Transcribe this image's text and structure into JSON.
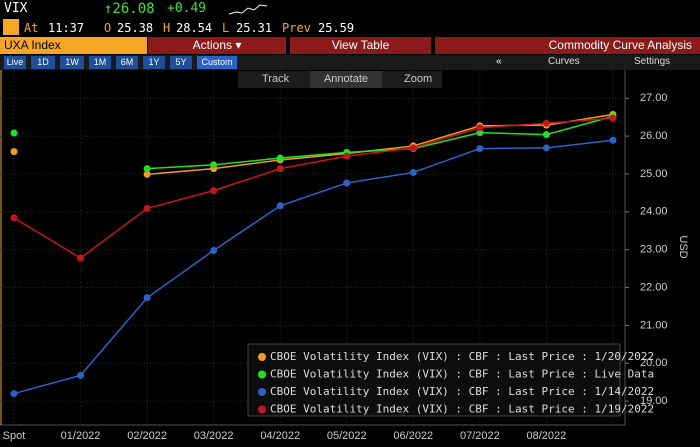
{
  "header": {
    "ticker": "VIX",
    "last": "↑26.08",
    "change": "+0.49",
    "time_label": "At",
    "time": "11:37",
    "open_label": "O",
    "open": "25.38",
    "high_label": "H",
    "high": "28.54",
    "low_label": "L",
    "low": "25.31",
    "prev_label": "Prev",
    "prev": "25.59"
  },
  "toolbar": {
    "security": "UXA Index",
    "actions": "Actions ▾",
    "view_table": "View Table",
    "function_title": "Commodity Curve Analysis",
    "periods": [
      "Live",
      "1D",
      "1W",
      "1M",
      "6M",
      "1Y",
      "5Y",
      "Custom"
    ],
    "collapse": "«",
    "curves": "Curves",
    "settings": "Settings",
    "track": "Track",
    "annotate": "Annotate",
    "zoom": "Zoom"
  },
  "chart_data": {
    "type": "line",
    "y_label": "USD",
    "categories": [
      "Spot",
      "01/2022",
      "02/2022",
      "03/2022",
      "04/2022",
      "05/2022",
      "06/2022",
      "07/2022",
      "08/2022",
      null
    ],
    "series": [
      {
        "name": "CBOE Volatility Index (VIX) : CBF : Last Price : 1/20/2022",
        "color": "#f39c1f",
        "values": [
          25.59,
          null,
          24.99,
          25.14,
          25.37,
          25.54,
          25.74,
          26.27,
          26.29,
          26.57
        ]
      },
      {
        "name": "CBOE Volatility Index (VIX) : CBF : Last Price : Live Data",
        "color": "#22e022",
        "values": [
          26.08,
          null,
          25.14,
          25.24,
          25.42,
          25.57,
          25.67,
          26.09,
          26.04,
          26.52
        ]
      },
      {
        "name": "CBOE Volatility Index (VIX) : CBF : Last Price : 1/14/2022",
        "color": "#2a64c8",
        "values": [
          19.2,
          19.68,
          21.73,
          22.98,
          24.16,
          24.76,
          25.04,
          25.67,
          25.69,
          25.89
        ]
      },
      {
        "name": "CBOE Volatility Index (VIX) : CBF : Last Price : 1/19/2022",
        "color": "#c8141e",
        "values": [
          23.84,
          22.78,
          24.09,
          24.56,
          25.14,
          25.47,
          25.69,
          26.22,
          26.34,
          26.47
        ]
      }
    ],
    "ylim": [
      18.37,
      27.27
    ],
    "yticks": [
      {
        "value": 19,
        "label": "19.00"
      },
      {
        "value": 20,
        "label": "20.00"
      },
      {
        "value": 21,
        "label": "21.00"
      },
      {
        "value": 22,
        "label": "22.00"
      },
      {
        "value": 23,
        "label": "23.00"
      },
      {
        "value": 24,
        "label": "24.00"
      },
      {
        "value": 25,
        "label": "25.00"
      },
      {
        "value": 26,
        "label": "26.00"
      },
      {
        "value": 27,
        "label": "27.00"
      }
    ],
    "grid": true
  }
}
